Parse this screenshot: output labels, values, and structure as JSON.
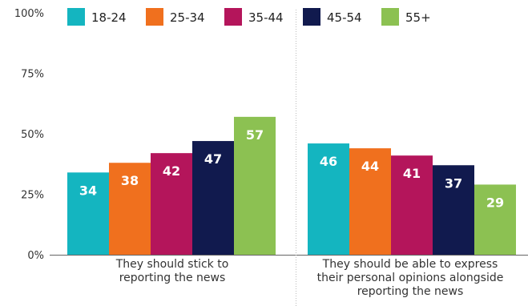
{
  "chart_data": {
    "type": "bar",
    "categories": [
      [
        "They should stick to",
        "reporting the news"
      ],
      [
        "They should be able to express",
        "their personal opinions alongside",
        "reporting the news"
      ]
    ],
    "series": [
      {
        "name": "18-24",
        "color": "#14b5c0",
        "values": [
          34,
          46
        ]
      },
      {
        "name": "25-34",
        "color": "#f0701e",
        "values": [
          38,
          44
        ]
      },
      {
        "name": "35-44",
        "color": "#b4155b",
        "values": [
          42,
          41
        ]
      },
      {
        "name": "45-54",
        "color": "#111a4e",
        "values": [
          47,
          37
        ]
      },
      {
        "name": "55+",
        "color": "#8cc152",
        "values": [
          57,
          29
        ]
      }
    ],
    "y_ticks": [
      "0%",
      "25%",
      "50%",
      "75%",
      "100%"
    ],
    "ylim": [
      0,
      100
    ],
    "legend_position": "top",
    "grid": false
  }
}
